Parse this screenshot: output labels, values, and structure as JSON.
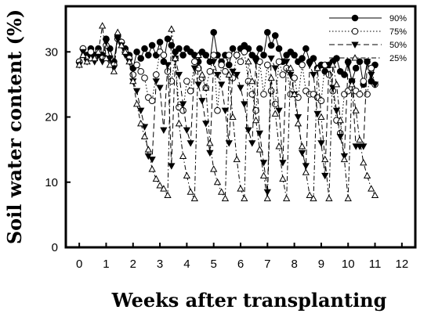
{
  "chart_data": {
    "type": "line",
    "xlabel": "Weeks after transplanting",
    "ylabel": "Soil water content (%)",
    "xlim": [
      -0.5,
      12.5
    ],
    "ylim": [
      0,
      37
    ],
    "xticks": [
      0,
      1,
      2,
      3,
      4,
      5,
      6,
      7,
      8,
      9,
      10,
      11,
      12
    ],
    "yticks": [
      0,
      10,
      20,
      30
    ],
    "grid": false,
    "legend_position": "top-right",
    "series": [
      {
        "name": "90%",
        "marker": "filled-circle",
        "dash": "solid",
        "x": [
          0,
          0.14,
          0.29,
          0.43,
          0.57,
          0.71,
          0.86,
          1.0,
          1.14,
          1.29,
          1.43,
          1.57,
          1.71,
          1.86,
          2.0,
          2.14,
          2.29,
          2.43,
          2.57,
          2.71,
          2.86,
          3.0,
          3.14,
          3.29,
          3.43,
          3.57,
          3.71,
          3.86,
          4.0,
          4.14,
          4.29,
          4.43,
          4.57,
          4.71,
          4.86,
          5.0,
          5.14,
          5.29,
          5.43,
          5.57,
          5.71,
          5.86,
          6.0,
          6.14,
          6.29,
          6.43,
          6.57,
          6.71,
          6.86,
          7.0,
          7.14,
          7.29,
          7.43,
          7.57,
          7.71,
          7.86,
          8.0,
          8.14,
          8.29,
          8.43,
          8.57,
          8.71,
          8.86,
          9.0,
          9.14,
          9.29,
          9.43,
          9.57,
          9.71,
          9.86,
          10.0,
          10.14,
          10.29,
          10.43,
          10.57,
          10.71,
          10.86,
          11.0
        ],
        "y": [
          28.5,
          30.5,
          29.5,
          30.5,
          29.5,
          30.5,
          29.5,
          32.0,
          30.5,
          28.5,
          32.5,
          31.5,
          30.5,
          29.5,
          27.5,
          30.0,
          29.0,
          30.5,
          29.5,
          31.0,
          29.5,
          31.5,
          28.5,
          32.0,
          31.0,
          30.0,
          30.5,
          29.5,
          30.5,
          30.0,
          29.5,
          28.5,
          30.0,
          29.5,
          28.5,
          33.0,
          29.5,
          28.5,
          29.5,
          28.0,
          30.5,
          29.5,
          30.5,
          31.0,
          30.5,
          29.5,
          29.0,
          30.5,
          29.5,
          33.0,
          31.0,
          32.5,
          30.5,
          28.5,
          29.5,
          30.0,
          29.5,
          28.5,
          29.0,
          30.5,
          28.5,
          29.0,
          27.5,
          28.0,
          27.0,
          28.0,
          28.5,
          29.0,
          27.0,
          26.5,
          28.5,
          25.5,
          27.5,
          28.5,
          25.0,
          28.5,
          25.5,
          28.0
        ]
      },
      {
        "name": "75%",
        "marker": "open-circle",
        "dash": "dotted",
        "x": [
          0,
          0.14,
          0.29,
          0.43,
          0.57,
          0.71,
          0.86,
          1.0,
          1.14,
          1.29,
          1.43,
          1.57,
          1.71,
          1.86,
          2.0,
          2.14,
          2.29,
          2.43,
          2.57,
          2.71,
          2.86,
          3.0,
          3.14,
          3.29,
          3.43,
          3.57,
          3.71,
          3.86,
          4.0,
          4.14,
          4.29,
          4.43,
          4.57,
          4.71,
          4.86,
          5.0,
          5.14,
          5.29,
          5.43,
          5.57,
          5.71,
          5.86,
          6.0,
          6.14,
          6.29,
          6.43,
          6.57,
          6.71,
          6.86,
          7.0,
          7.14,
          7.29,
          7.43,
          7.57,
          7.71,
          7.86,
          8.0,
          8.14,
          8.29,
          8.43,
          8.57,
          8.71,
          8.86,
          9.0,
          9.14,
          9.29,
          9.43,
          9.57,
          9.71,
          9.86,
          10.0,
          10.14,
          10.29,
          10.43,
          10.57,
          10.71,
          10.86,
          11.0
        ],
        "y": [
          28.5,
          30.5,
          29.0,
          30.0,
          29.0,
          30.0,
          29.0,
          31.0,
          29.0,
          28.0,
          32.0,
          31.5,
          30.0,
          29.0,
          26.5,
          28.0,
          27.0,
          26.0,
          23.0,
          22.5,
          26.5,
          30.0,
          29.5,
          27.0,
          25.5,
          29.0,
          21.5,
          21.0,
          25.5,
          24.0,
          28.5,
          27.5,
          26.0,
          24.5,
          27.0,
          29.5,
          21.0,
          28.0,
          27.0,
          29.5,
          26.0,
          29.5,
          28.5,
          30.0,
          25.5,
          23.5,
          21.0,
          28.5,
          23.5,
          28.0,
          24.0,
          22.0,
          28.5,
          26.5,
          27.5,
          23.5,
          26.0,
          23.0,
          28.0,
          24.0,
          23.5,
          23.5,
          23.0,
          22.5,
          28.0,
          26.5,
          24.0,
          19.5,
          17.5,
          23.5,
          24.0,
          24.5,
          24.0,
          23.5,
          25.5,
          23.5,
          27.5,
          25.0
        ]
      },
      {
        "name": "50%",
        "marker": "filled-triangle-down",
        "dash": "dashed",
        "x": [
          0,
          0.14,
          0.29,
          0.43,
          0.57,
          0.71,
          0.86,
          1.0,
          1.14,
          1.29,
          1.43,
          1.57,
          1.71,
          1.86,
          2.0,
          2.14,
          2.29,
          2.43,
          2.57,
          2.71,
          2.86,
          3.0,
          3.14,
          3.29,
          3.43,
          3.57,
          3.71,
          3.86,
          4.0,
          4.14,
          4.29,
          4.43,
          4.57,
          4.71,
          4.86,
          5.0,
          5.14,
          5.29,
          5.43,
          5.57,
          5.71,
          5.86,
          6.0,
          6.14,
          6.29,
          6.43,
          6.57,
          6.71,
          6.86,
          7.0,
          7.14,
          7.29,
          7.43,
          7.57,
          7.71,
          7.86,
          8.0,
          8.14,
          8.29,
          8.43,
          8.57,
          8.71,
          8.86,
          9.0,
          9.14,
          9.29,
          9.43,
          9.57,
          9.71,
          9.86,
          10.0,
          10.14,
          10.29,
          10.43,
          10.57,
          10.71,
          10.86,
          11.0
        ],
        "y": [
          28.0,
          30.0,
          28.5,
          29.0,
          28.5,
          29.5,
          28.5,
          31.5,
          29.0,
          27.5,
          32.0,
          31.0,
          29.5,
          28.5,
          25.5,
          24.0,
          21.0,
          18.5,
          14.0,
          13.5,
          25.5,
          24.5,
          18.0,
          28.0,
          12.5,
          29.0,
          26.5,
          22.0,
          18.0,
          16.0,
          27.5,
          25.0,
          22.5,
          19.0,
          14.5,
          28.5,
          26.5,
          25.0,
          21.0,
          16.0,
          27.0,
          26.5,
          24.5,
          22.0,
          18.0,
          16.0,
          28.5,
          17.5,
          13.0,
          8.5,
          29.0,
          27.5,
          21.0,
          13.0,
          28.5,
          26.5,
          23.5,
          20.0,
          14.5,
          12.5,
          28.0,
          26.5,
          20.5,
          16.0,
          11.0,
          28.0,
          24.5,
          21.0,
          17.0,
          14.0,
          28.0,
          25.5,
          15.5,
          15.5,
          15.5,
          28.5,
          26.5,
          25.0
        ]
      },
      {
        "name": "25%",
        "marker": "open-triangle-up",
        "dash": "dash-dot",
        "x": [
          0,
          0.14,
          0.29,
          0.43,
          0.57,
          0.71,
          0.86,
          1.0,
          1.14,
          1.29,
          1.43,
          1.57,
          1.71,
          1.86,
          2.0,
          2.14,
          2.29,
          2.43,
          2.57,
          2.71,
          2.86,
          3.0,
          3.14,
          3.29,
          3.43,
          3.57,
          3.71,
          3.86,
          4.0,
          4.14,
          4.29,
          4.43,
          4.57,
          4.71,
          4.86,
          5.0,
          5.14,
          5.29,
          5.43,
          5.57,
          5.71,
          5.86,
          6.0,
          6.14,
          6.29,
          6.43,
          6.57,
          6.71,
          6.86,
          7.0,
          7.14,
          7.29,
          7.43,
          7.57,
          7.71,
          7.86,
          8.0,
          8.14,
          8.29,
          8.43,
          8.57,
          8.71,
          8.86,
          9.0,
          9.14,
          9.29,
          9.43,
          9.57,
          9.71,
          9.86,
          10.0,
          10.14,
          10.29,
          10.43,
          10.57,
          10.71,
          10.86,
          11.0
        ],
        "y": [
          28.0,
          29.5,
          28.5,
          29.0,
          29.0,
          30.0,
          34.0,
          29.0,
          28.0,
          27.0,
          33.0,
          31.0,
          30.0,
          28.5,
          25.5,
          22.0,
          19.0,
          17.0,
          15.0,
          12.0,
          10.5,
          9.5,
          9.0,
          8.0,
          33.5,
          29.0,
          19.0,
          14.0,
          11.0,
          8.5,
          7.5,
          29.5,
          26.5,
          24.5,
          16.0,
          12.0,
          10.0,
          8.5,
          7.5,
          26.5,
          20.0,
          13.5,
          9.0,
          7.5,
          28.5,
          25.5,
          19.5,
          15.0,
          11.0,
          7.5,
          26.0,
          20.5,
          15.5,
          10.5,
          7.5,
          27.5,
          23.5,
          19.0,
          15.5,
          11.5,
          8.0,
          7.5,
          27.5,
          20.0,
          13.5,
          7.5,
          28.0,
          25.0,
          19.5,
          13.5,
          7.5,
          25.0,
          21.0,
          16.5,
          13.0,
          11.0,
          9.0,
          8.0
        ]
      }
    ]
  }
}
